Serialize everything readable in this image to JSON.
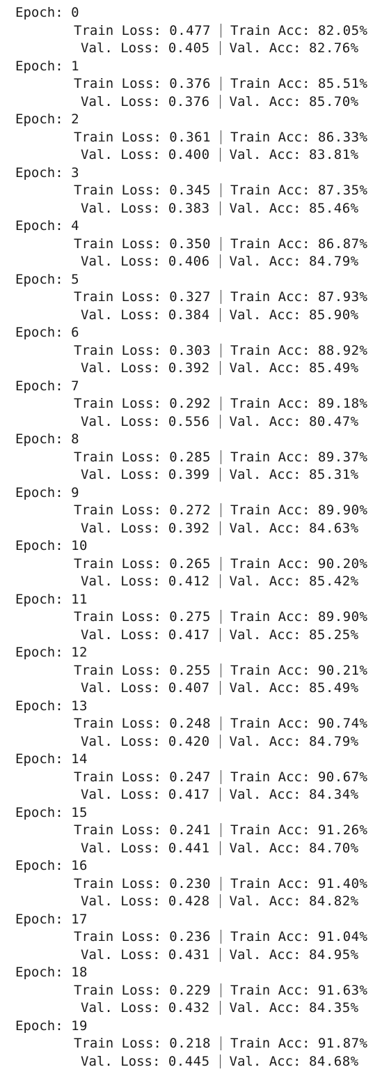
{
  "labels": {
    "epoch": "Epoch:",
    "train_loss": "Train Loss:",
    "train_acc": "Train Acc:",
    "val_loss": "Val. Loss:",
    "val_acc": "Val. Acc:"
  },
  "epochs": [
    {
      "epoch": "0",
      "train_loss": "0.477",
      "train_acc": "82.05%",
      "val_loss": "0.405",
      "val_acc": "82.76%"
    },
    {
      "epoch": "1",
      "train_loss": "0.376",
      "train_acc": "85.51%",
      "val_loss": "0.376",
      "val_acc": "85.70%"
    },
    {
      "epoch": "2",
      "train_loss": "0.361",
      "train_acc": "86.33%",
      "val_loss": "0.400",
      "val_acc": "83.81%"
    },
    {
      "epoch": "3",
      "train_loss": "0.345",
      "train_acc": "87.35%",
      "val_loss": "0.383",
      "val_acc": "85.46%"
    },
    {
      "epoch": "4",
      "train_loss": "0.350",
      "train_acc": "86.87%",
      "val_loss": "0.406",
      "val_acc": "84.79%"
    },
    {
      "epoch": "5",
      "train_loss": "0.327",
      "train_acc": "87.93%",
      "val_loss": "0.384",
      "val_acc": "85.90%"
    },
    {
      "epoch": "6",
      "train_loss": "0.303",
      "train_acc": "88.92%",
      "val_loss": "0.392",
      "val_acc": "85.49%"
    },
    {
      "epoch": "7",
      "train_loss": "0.292",
      "train_acc": "89.18%",
      "val_loss": "0.556",
      "val_acc": "80.47%"
    },
    {
      "epoch": "8",
      "train_loss": "0.285",
      "train_acc": "89.37%",
      "val_loss": "0.399",
      "val_acc": "85.31%"
    },
    {
      "epoch": "9",
      "train_loss": "0.272",
      "train_acc": "89.90%",
      "val_loss": "0.392",
      "val_acc": "84.63%"
    },
    {
      "epoch": "10",
      "train_loss": "0.265",
      "train_acc": "90.20%",
      "val_loss": "0.412",
      "val_acc": "85.42%"
    },
    {
      "epoch": "11",
      "train_loss": "0.275",
      "train_acc": "89.90%",
      "val_loss": "0.417",
      "val_acc": "85.25%"
    },
    {
      "epoch": "12",
      "train_loss": "0.255",
      "train_acc": "90.21%",
      "val_loss": "0.407",
      "val_acc": "85.49%"
    },
    {
      "epoch": "13",
      "train_loss": "0.248",
      "train_acc": "90.74%",
      "val_loss": "0.420",
      "val_acc": "84.79%"
    },
    {
      "epoch": "14",
      "train_loss": "0.247",
      "train_acc": "90.67%",
      "val_loss": "0.417",
      "val_acc": "84.34%"
    },
    {
      "epoch": "15",
      "train_loss": "0.241",
      "train_acc": "91.26%",
      "val_loss": "0.441",
      "val_acc": "84.70%"
    },
    {
      "epoch": "16",
      "train_loss": "0.230",
      "train_acc": "91.40%",
      "val_loss": "0.428",
      "val_acc": "84.82%"
    },
    {
      "epoch": "17",
      "train_loss": "0.236",
      "train_acc": "91.04%",
      "val_loss": "0.431",
      "val_acc": "84.95%"
    },
    {
      "epoch": "18",
      "train_loss": "0.229",
      "train_acc": "91.63%",
      "val_loss": "0.432",
      "val_acc": "84.35%"
    },
    {
      "epoch": "19",
      "train_loss": "0.218",
      "train_acc": "91.87%",
      "val_loss": "0.445",
      "val_acc": "84.68%"
    }
  ]
}
